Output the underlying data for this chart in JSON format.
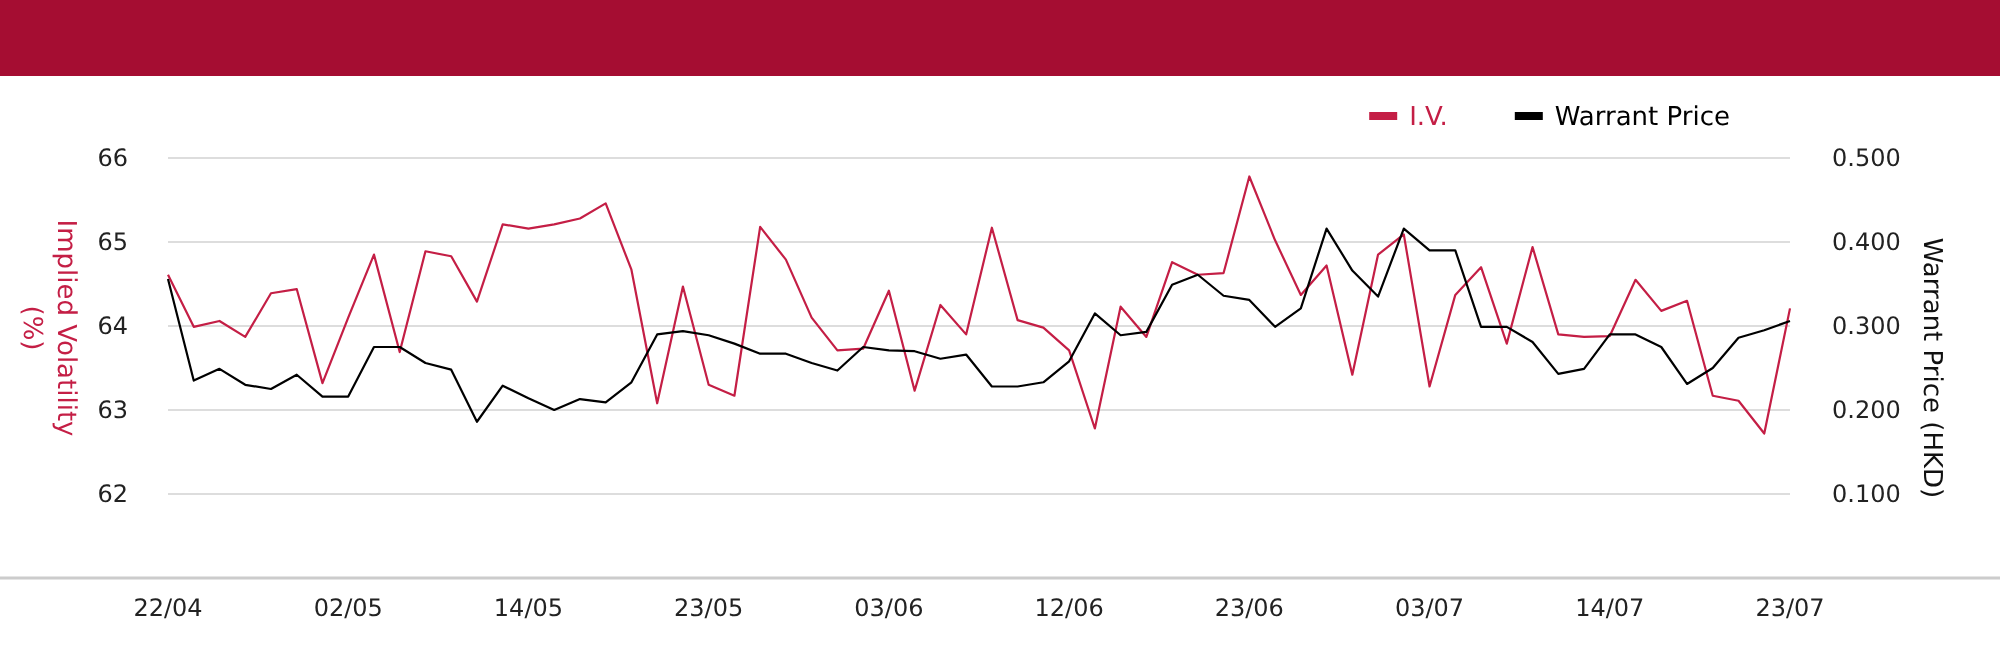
{
  "chart_data": {
    "type": "line",
    "ylabel": "Implied Volatility (%)",
    "y2label": "Warrant Price (HKD)",
    "categories": [
      "22/04",
      null,
      null,
      null,
      null,
      null,
      null,
      "02/05",
      null,
      null,
      null,
      null,
      null,
      null,
      "14/05",
      null,
      null,
      null,
      null,
      null,
      null,
      "23/05",
      null,
      null,
      null,
      null,
      null,
      null,
      "03/06",
      null,
      null,
      null,
      null,
      null,
      null,
      "12/06",
      null,
      null,
      null,
      null,
      null,
      null,
      "23/06",
      null,
      null,
      null,
      null,
      null,
      null,
      "03/07",
      null,
      null,
      null,
      null,
      null,
      null,
      "14/07",
      null,
      null,
      null,
      null,
      null,
      null,
      "23/07"
    ],
    "series": [
      {
        "name": "I.V.",
        "color": "#c41e45",
        "values": [
          64.61,
          63.99,
          64.06,
          63.87,
          64.39,
          64.44,
          63.32,
          64.1,
          64.85,
          63.69,
          64.89,
          64.83,
          64.29,
          65.21,
          65.16,
          65.21,
          65.28,
          65.46,
          64.67,
          63.08,
          64.47,
          63.3,
          63.17,
          65.18,
          64.79,
          64.1,
          63.71,
          63.73,
          64.42,
          63.23,
          64.25,
          63.9,
          65.17,
          64.07,
          63.98,
          63.71,
          62.78,
          64.23,
          63.87,
          64.76,
          64.61,
          64.63,
          65.78,
          65.02,
          64.37,
          64.72,
          63.42,
          64.85,
          65.09,
          63.28,
          64.37,
          64.7,
          63.79,
          64.94,
          63.9,
          63.87,
          63.88,
          64.55,
          64.18,
          64.3,
          63.17,
          63.11,
          62.72,
          64.21
        ]
      },
      {
        "name": "Warrant Price",
        "color": "#000000",
        "axis": "y2",
        "values": [
          0.356,
          0.235,
          0.249,
          0.23,
          0.225,
          0.242,
          0.216,
          0.216,
          0.275,
          0.275,
          0.256,
          0.248,
          0.186,
          0.229,
          0.214,
          0.2,
          0.213,
          0.209,
          0.233,
          0.29,
          0.294,
          0.289,
          0.279,
          0.267,
          0.267,
          0.256,
          0.247,
          0.275,
          0.271,
          0.27,
          0.261,
          0.266,
          0.228,
          0.228,
          0.233,
          0.258,
          0.315,
          0.289,
          0.293,
          0.349,
          0.361,
          0.336,
          0.331,
          0.299,
          0.321,
          0.416,
          0.366,
          0.335,
          0.416,
          0.39,
          0.39,
          0.299,
          0.299,
          0.281,
          0.243,
          0.249,
          0.29,
          0.29,
          0.275,
          0.231,
          0.25,
          0.286,
          0.295,
          0.306
        ]
      }
    ],
    "ylim": [
      61,
      66
    ],
    "yticks": [
      62,
      63,
      64,
      65,
      66
    ],
    "y2lim": [
      0,
      0.5
    ],
    "y2ticks": [
      {
        "value": 0.1,
        "label": "0.100"
      },
      {
        "value": 0.2,
        "label": "0.200"
      },
      {
        "value": 0.3,
        "label": "0.300"
      },
      {
        "value": 0.4,
        "label": "0.400"
      },
      {
        "value": 0.5,
        "label": "0.500"
      }
    ],
    "grid": "y",
    "legend": "top right",
    "marker": "none",
    "line_style": "solid"
  }
}
